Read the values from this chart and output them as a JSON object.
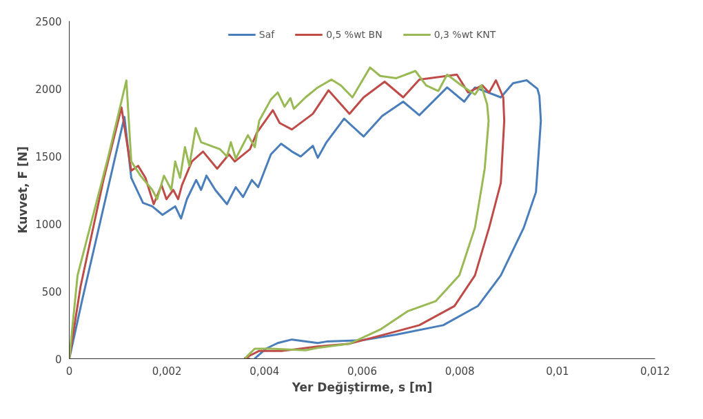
{
  "chart_data": {
    "type": "line",
    "xlabel": "Yer Değiştirme, s [m]",
    "ylabel": "Kuvvet, F [N]",
    "xlim": [
      0,
      0.012
    ],
    "xticks": [
      0,
      {
        "value": 0.002,
        "label": "0,002"
      },
      {
        "value": 0.004,
        "label": "0,004"
      },
      {
        "value": 0.006,
        "label": "0,006"
      },
      {
        "value": 0.008,
        "label": "0,008"
      },
      {
        "value": 0.01,
        "label": "0,01"
      },
      {
        "value": 0.012,
        "label": "0,012"
      }
    ],
    "ylim": [
      0,
      2500
    ],
    "yticks": [
      0,
      500,
      1000,
      1500,
      2000,
      2500
    ],
    "grid": false,
    "legend": "top",
    "line_style": "solid",
    "marker": "none",
    "series": [
      {
        "name": "Saf",
        "color": "#4a7ebb",
        "x": [
          0,
          0.00027,
          0.00113,
          0.00127,
          0.00151,
          0.0017,
          0.00191,
          0.00217,
          0.00229,
          0.00241,
          0.0026,
          0.0027,
          0.00281,
          0.00299,
          0.00323,
          0.00341,
          0.00356,
          0.00374,
          0.00387,
          0.00413,
          0.00434,
          0.00456,
          0.00474,
          0.00499,
          0.00509,
          0.00527,
          0.00563,
          0.00603,
          0.00641,
          0.00684,
          0.00717,
          0.00774,
          0.00809,
          0.00831,
          0.00884,
          0.00909,
          0.00937,
          0.00959,
          0.00963,
          0.00966,
          0.00956,
          0.00931,
          0.00884,
          0.00837,
          0.00766,
          0.0067,
          0.00599,
          0.00527,
          0.00509,
          0.00456,
          0.00427,
          0.00403,
          0.00381,
          0.0038
        ],
        "values": [
          0,
          443,
          1790,
          1339,
          1154,
          1128,
          1065,
          1128,
          1038,
          1181,
          1323,
          1250,
          1355,
          1250,
          1144,
          1270,
          1197,
          1323,
          1270,
          1513,
          1592,
          1534,
          1497,
          1576,
          1487,
          1603,
          1777,
          1645,
          1797,
          1903,
          1803,
          2008,
          1903,
          2008,
          1935,
          2040,
          2061,
          1998,
          1945,
          1761,
          1234,
          970,
          617,
          390,
          248,
          179,
          137,
          127,
          116,
          142,
          116,
          74,
          5,
          0
        ]
      },
      {
        "name": "0,5 %wt BN",
        "color": "#be4b48",
        "x": [
          0,
          0.00023,
          0.0007,
          0.00107,
          0.00127,
          0.00141,
          0.00156,
          0.00173,
          0.00189,
          0.00199,
          0.00213,
          0.00223,
          0.00231,
          0.00251,
          0.00274,
          0.00303,
          0.00327,
          0.00339,
          0.0037,
          0.00384,
          0.00417,
          0.00431,
          0.00456,
          0.00499,
          0.00531,
          0.00574,
          0.00603,
          0.00646,
          0.00684,
          0.00717,
          0.00794,
          0.00817,
          0.00846,
          0.0086,
          0.00874,
          0.00889,
          0.00891,
          0.00884,
          0.0086,
          0.00831,
          0.00789,
          0.00717,
          0.00646,
          0.00574,
          0.00509,
          0.00437,
          0.00389,
          0.0036,
          0.0037
        ],
        "values": [
          0,
          532,
          1323,
          1860,
          1392,
          1428,
          1339,
          1144,
          1286,
          1181,
          1250,
          1181,
          1286,
          1460,
          1534,
          1407,
          1513,
          1460,
          1550,
          1671,
          1840,
          1745,
          1697,
          1813,
          1987,
          1813,
          1935,
          2051,
          1935,
          2066,
          2103,
          1971,
          2024,
          1971,
          2061,
          1935,
          1761,
          1302,
          970,
          617,
          390,
          248,
          179,
          111,
          90,
          58,
          58,
          5,
          0
        ]
      },
      {
        "name": "0,3 %wt KNT",
        "color": "#98b954",
        "x": [
          0,
          0.00017,
          0.0008,
          0.00117,
          0.00127,
          0.00146,
          0.0017,
          0.0018,
          0.00194,
          0.00209,
          0.00217,
          0.00227,
          0.00237,
          0.00246,
          0.00259,
          0.0027,
          0.00309,
          0.00323,
          0.00331,
          0.00341,
          0.00366,
          0.0038,
          0.00389,
          0.00413,
          0.00427,
          0.00441,
          0.00453,
          0.0046,
          0.00484,
          0.00509,
          0.00537,
          0.00556,
          0.0058,
          0.00616,
          0.00637,
          0.0067,
          0.00709,
          0.00731,
          0.00756,
          0.00774,
          0.00803,
          0.00831,
          0.00844,
          0.00856,
          0.00859,
          0.00851,
          0.00831,
          0.00799,
          0.00751,
          0.00694,
          0.00637,
          0.00574,
          0.00509,
          0.00484,
          0.00413,
          0.0038,
          0.00365,
          0.0036
        ],
        "values": [
          0,
          617,
          1497,
          2060,
          1460,
          1355,
          1250,
          1181,
          1355,
          1250,
          1460,
          1339,
          1566,
          1428,
          1708,
          1603,
          1550,
          1497,
          1603,
          1481,
          1655,
          1566,
          1761,
          1919,
          1971,
          1866,
          1929,
          1850,
          1935,
          2008,
          2066,
          2024,
          1935,
          2156,
          2093,
          2077,
          2130,
          2024,
          1982,
          2103,
          2024,
          1956,
          2024,
          1882,
          1761,
          1407,
          970,
          617,
          427,
          353,
          216,
          111,
          80,
          63,
          74,
          74,
          21,
          0
        ]
      }
    ]
  }
}
